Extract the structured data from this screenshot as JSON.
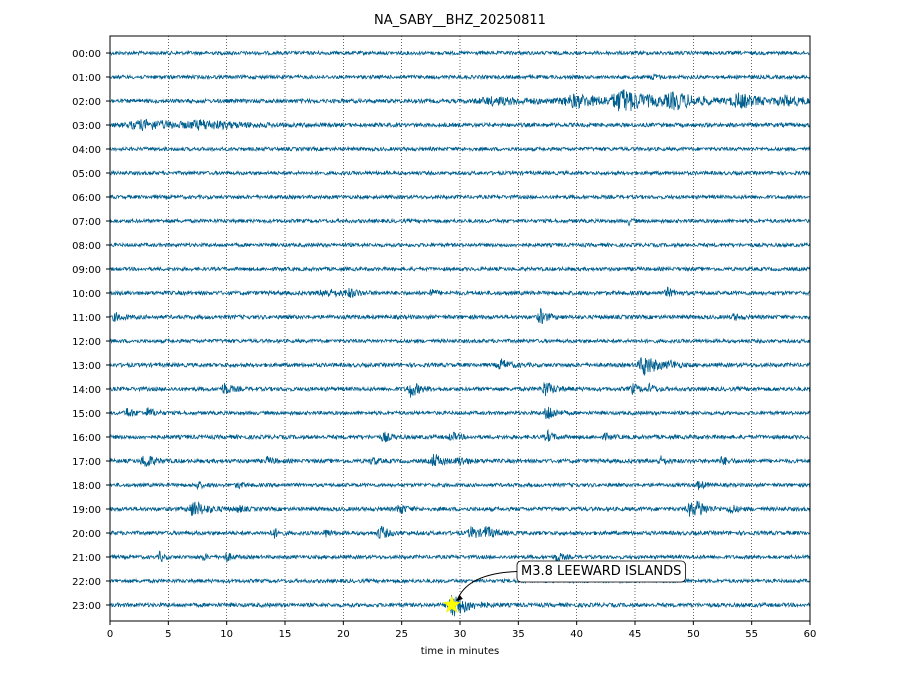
{
  "chart_data": {
    "type": "line",
    "title": "NA_SABY__BHZ_20250811",
    "xlabel": "time in minutes",
    "ylabel": "",
    "xlim": [
      0,
      60
    ],
    "x_ticks": [
      0,
      5,
      10,
      15,
      20,
      25,
      30,
      35,
      40,
      45,
      50,
      55,
      60
    ],
    "grid": "vertical dotted lines at x ticks",
    "trace_color": "#005f8f",
    "rows": [
      {
        "label": "00:00",
        "noise": 0.2,
        "events": []
      },
      {
        "label": "01:00",
        "noise": 0.2,
        "events": [
          {
            "t": 46.5,
            "amp": 0.3,
            "dur": 0.4
          }
        ]
      },
      {
        "label": "02:00",
        "noise": 0.22,
        "events": [
          {
            "t": 33.0,
            "amp": 0.35,
            "dur": 4.0
          },
          {
            "t": 40.0,
            "amp": 0.6,
            "dur": 3.0
          },
          {
            "t": 44.0,
            "amp": 1.1,
            "dur": 2.5
          },
          {
            "t": 48.5,
            "amp": 0.7,
            "dur": 2.5
          },
          {
            "t": 54.0,
            "amp": 0.7,
            "dur": 2.0
          },
          {
            "t": 58.0,
            "amp": 0.45,
            "dur": 2.0
          }
        ]
      },
      {
        "label": "03:00",
        "noise": 0.22,
        "events": [
          {
            "t": 3.0,
            "amp": 0.45,
            "dur": 4.0
          },
          {
            "t": 8.0,
            "amp": 0.35,
            "dur": 3.0
          }
        ]
      },
      {
        "label": "04:00",
        "noise": 0.2,
        "events": []
      },
      {
        "label": "05:00",
        "noise": 0.2,
        "events": []
      },
      {
        "label": "06:00",
        "noise": 0.2,
        "events": []
      },
      {
        "label": "07:00",
        "noise": 0.2,
        "events": [
          {
            "t": 44.5,
            "amp": 0.35,
            "dur": 0.3
          }
        ]
      },
      {
        "label": "08:00",
        "noise": 0.2,
        "events": []
      },
      {
        "label": "09:00",
        "noise": 0.2,
        "events": []
      },
      {
        "label": "10:00",
        "noise": 0.22,
        "events": [
          {
            "t": 18.5,
            "amp": 0.35,
            "dur": 1.5
          },
          {
            "t": 20.5,
            "amp": 0.35,
            "dur": 0.8
          },
          {
            "t": 27.5,
            "amp": 0.35,
            "dur": 0.5
          },
          {
            "t": 47.8,
            "amp": 0.45,
            "dur": 0.6
          }
        ]
      },
      {
        "label": "11:00",
        "noise": 0.22,
        "events": [
          {
            "t": 0.5,
            "amp": 0.35,
            "dur": 0.8
          },
          {
            "t": 36.9,
            "amp": 0.8,
            "dur": 0.6
          },
          {
            "t": 53.5,
            "amp": 0.3,
            "dur": 0.5
          }
        ]
      },
      {
        "label": "12:00",
        "noise": 0.2,
        "events": []
      },
      {
        "label": "13:00",
        "noise": 0.22,
        "events": [
          {
            "t": 33.5,
            "amp": 0.55,
            "dur": 0.8
          },
          {
            "t": 45.8,
            "amp": 1.1,
            "dur": 1.2
          },
          {
            "t": 48.0,
            "amp": 0.35,
            "dur": 0.5
          }
        ]
      },
      {
        "label": "14:00",
        "noise": 0.22,
        "events": [
          {
            "t": 9.8,
            "amp": 0.6,
            "dur": 0.6
          },
          {
            "t": 25.8,
            "amp": 0.8,
            "dur": 0.8
          },
          {
            "t": 37.3,
            "amp": 0.8,
            "dur": 0.8
          },
          {
            "t": 44.8,
            "amp": 0.5,
            "dur": 0.6
          },
          {
            "t": 46.3,
            "amp": 0.45,
            "dur": 0.5
          }
        ]
      },
      {
        "label": "15:00",
        "noise": 0.2,
        "events": [
          {
            "t": 1.5,
            "amp": 0.5,
            "dur": 0.6
          },
          {
            "t": 3.3,
            "amp": 0.5,
            "dur": 0.6
          },
          {
            "t": 37.5,
            "amp": 1.0,
            "dur": 0.6
          }
        ]
      },
      {
        "label": "16:00",
        "noise": 0.22,
        "events": [
          {
            "t": 23.5,
            "amp": 0.5,
            "dur": 0.6
          },
          {
            "t": 29.3,
            "amp": 0.45,
            "dur": 0.6
          },
          {
            "t": 37.5,
            "amp": 0.6,
            "dur": 0.5
          },
          {
            "t": 42.5,
            "amp": 0.3,
            "dur": 0.5
          }
        ]
      },
      {
        "label": "17:00",
        "noise": 0.22,
        "events": [
          {
            "t": 3.0,
            "amp": 0.75,
            "dur": 0.8
          },
          {
            "t": 13.5,
            "amp": 0.35,
            "dur": 0.6
          },
          {
            "t": 22.5,
            "amp": 0.35,
            "dur": 0.6
          },
          {
            "t": 27.8,
            "amp": 0.7,
            "dur": 0.8
          },
          {
            "t": 30.0,
            "amp": 0.4,
            "dur": 0.8
          },
          {
            "t": 47.2,
            "amp": 0.45,
            "dur": 0.6
          },
          {
            "t": 52.5,
            "amp": 0.4,
            "dur": 0.6
          }
        ]
      },
      {
        "label": "18:00",
        "noise": 0.2,
        "events": [
          {
            "t": 7.5,
            "amp": 0.35,
            "dur": 0.5
          },
          {
            "t": 11.0,
            "amp": 0.3,
            "dur": 0.5
          },
          {
            "t": 50.5,
            "amp": 0.45,
            "dur": 0.5
          }
        ]
      },
      {
        "label": "19:00",
        "noise": 0.22,
        "events": [
          {
            "t": 7.2,
            "amp": 0.8,
            "dur": 1.2
          },
          {
            "t": 11.0,
            "amp": 0.3,
            "dur": 0.5
          },
          {
            "t": 24.8,
            "amp": 0.55,
            "dur": 0.6
          },
          {
            "t": 49.8,
            "amp": 0.8,
            "dur": 0.8
          },
          {
            "t": 50.5,
            "amp": 0.6,
            "dur": 0.6
          },
          {
            "t": 53.2,
            "amp": 0.55,
            "dur": 0.5
          }
        ]
      },
      {
        "label": "20:00",
        "noise": 0.22,
        "events": [
          {
            "t": 14.0,
            "amp": 0.6,
            "dur": 0.4
          },
          {
            "t": 18.5,
            "amp": 0.35,
            "dur": 0.5
          },
          {
            "t": 23.2,
            "amp": 0.75,
            "dur": 0.6
          },
          {
            "t": 31.0,
            "amp": 0.6,
            "dur": 0.8
          },
          {
            "t": 32.3,
            "amp": 0.55,
            "dur": 0.8
          }
        ]
      },
      {
        "label": "21:00",
        "noise": 0.2,
        "events": [
          {
            "t": 4.3,
            "amp": 0.6,
            "dur": 0.3
          },
          {
            "t": 8.0,
            "amp": 0.35,
            "dur": 0.3
          },
          {
            "t": 10.0,
            "amp": 0.45,
            "dur": 0.5
          },
          {
            "t": 38.3,
            "amp": 0.5,
            "dur": 0.5
          }
        ]
      },
      {
        "label": "22:00",
        "noise": 0.2,
        "events": []
      },
      {
        "label": "23:00",
        "noise": 0.22,
        "events": [
          {
            "t": 29.5,
            "amp": 1.4,
            "dur": 1.2
          }
        ]
      }
    ],
    "annotations": [
      {
        "text": "M3.8 LEEWARD ISLANDS",
        "x": 29.3,
        "row": "23:00",
        "marker": "star",
        "marker_color": "#ffff00"
      }
    ]
  }
}
